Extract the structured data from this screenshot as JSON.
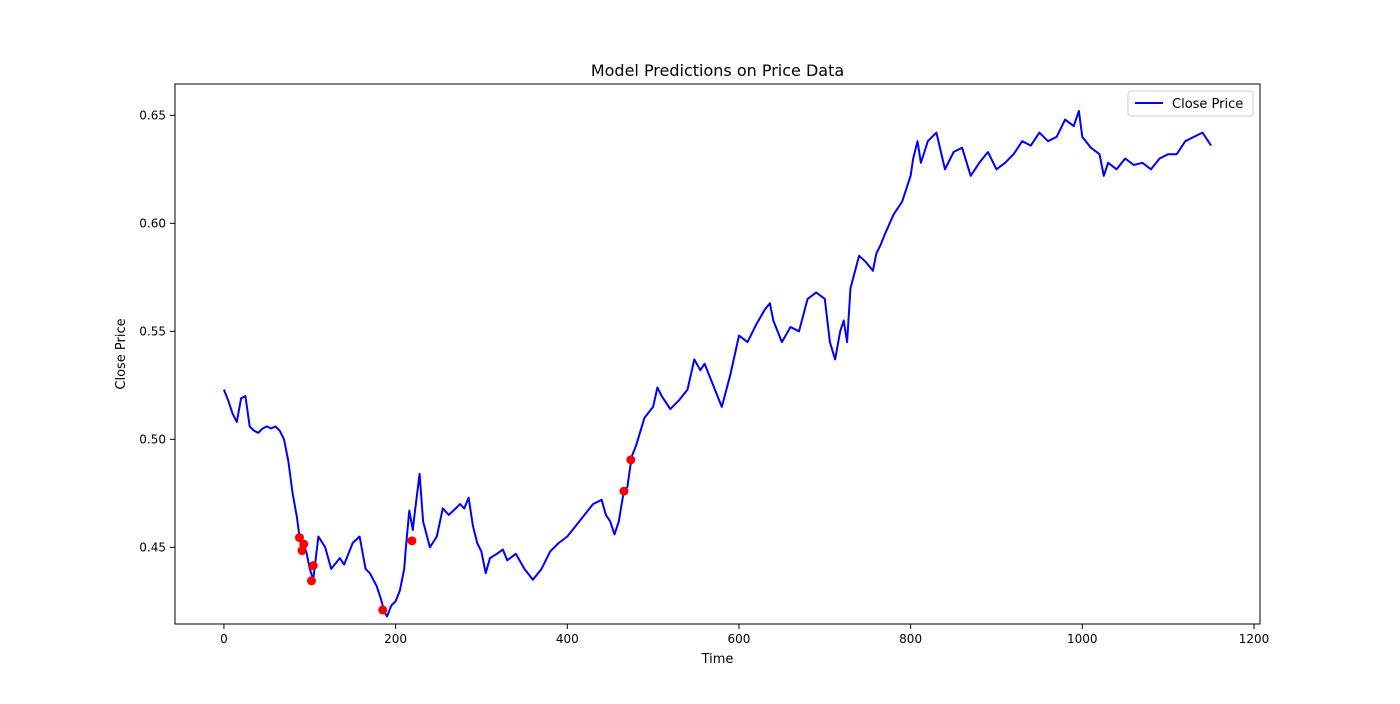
{
  "chart_data": {
    "type": "line",
    "title": "Model Predictions on Price Data",
    "xlabel": "Time",
    "ylabel": "Close Price",
    "xlim": [
      -57,
      1207
    ],
    "ylim": [
      0.4145,
      0.6645
    ],
    "xticks": [
      0,
      200,
      400,
      600,
      800,
      1000,
      1200
    ],
    "yticks": [
      0.45,
      0.5,
      0.55,
      0.6,
      0.65
    ],
    "grid": false,
    "legend": {
      "position": "top-right",
      "entries": [
        "Close Price"
      ]
    },
    "colors": {
      "series": "#0000ff",
      "predictions": "#ff0000"
    },
    "series": [
      {
        "name": "Close Price",
        "x": [
          0,
          5,
          10,
          15,
          20,
          25,
          30,
          35,
          40,
          45,
          50,
          55,
          60,
          65,
          70,
          75,
          80,
          85,
          88,
          92,
          96,
          100,
          104,
          110,
          118,
          125,
          135,
          140,
          150,
          158,
          165,
          170,
          178,
          183,
          187,
          190,
          195,
          200,
          205,
          210,
          212,
          216,
          220,
          222,
          228,
          232,
          240,
          248,
          255,
          262,
          270,
          275,
          280,
          285,
          290,
          295,
          300,
          305,
          310,
          318,
          325,
          330,
          340,
          350,
          360,
          370,
          380,
          390,
          400,
          410,
          420,
          430,
          440,
          445,
          450,
          455,
          460,
          465,
          470,
          475,
          480,
          490,
          500,
          505,
          510,
          520,
          530,
          540,
          548,
          555,
          560,
          565,
          570,
          575,
          580,
          590,
          600,
          610,
          620,
          630,
          636,
          640,
          650,
          660,
          670,
          680,
          690,
          700,
          706,
          712,
          718,
          722,
          726,
          730,
          740,
          748,
          756,
          760,
          765,
          770,
          780,
          790,
          800,
          803,
          808,
          812,
          816,
          820,
          830,
          840,
          850,
          860,
          870,
          880,
          890,
          900,
          910,
          920,
          930,
          940,
          950,
          960,
          970,
          980,
          990,
          996,
          1000,
          1010,
          1020,
          1025,
          1030,
          1040,
          1050,
          1060,
          1070,
          1080,
          1090,
          1100,
          1110,
          1120,
          1130,
          1140,
          1150
        ],
        "values": [
          0.523,
          0.518,
          0.512,
          0.508,
          0.519,
          0.52,
          0.506,
          0.504,
          0.503,
          0.505,
          0.506,
          0.505,
          0.506,
          0.504,
          0.5,
          0.49,
          0.475,
          0.464,
          0.455,
          0.452,
          0.448,
          0.44,
          0.435,
          0.455,
          0.45,
          0.44,
          0.445,
          0.442,
          0.452,
          0.455,
          0.44,
          0.438,
          0.432,
          0.426,
          0.42,
          0.418,
          0.423,
          0.425,
          0.43,
          0.44,
          0.45,
          0.467,
          0.458,
          0.465,
          0.484,
          0.462,
          0.45,
          0.455,
          0.468,
          0.465,
          0.468,
          0.47,
          0.468,
          0.473,
          0.46,
          0.452,
          0.448,
          0.438,
          0.445,
          0.447,
          0.449,
          0.444,
          0.447,
          0.44,
          0.435,
          0.44,
          0.448,
          0.452,
          0.455,
          0.46,
          0.465,
          0.47,
          0.472,
          0.465,
          0.462,
          0.456,
          0.462,
          0.474,
          0.478,
          0.492,
          0.497,
          0.51,
          0.515,
          0.524,
          0.52,
          0.514,
          0.518,
          0.523,
          0.537,
          0.532,
          0.535,
          0.53,
          0.525,
          0.52,
          0.515,
          0.53,
          0.548,
          0.545,
          0.553,
          0.56,
          0.563,
          0.555,
          0.545,
          0.552,
          0.55,
          0.565,
          0.568,
          0.565,
          0.545,
          0.537,
          0.55,
          0.555,
          0.545,
          0.57,
          0.585,
          0.582,
          0.578,
          0.586,
          0.59,
          0.595,
          0.604,
          0.61,
          0.622,
          0.63,
          0.638,
          0.628,
          0.633,
          0.638,
          0.642,
          0.625,
          0.633,
          0.635,
          0.622,
          0.628,
          0.633,
          0.625,
          0.628,
          0.632,
          0.638,
          0.636,
          0.642,
          0.638,
          0.64,
          0.648,
          0.645,
          0.652,
          0.64,
          0.635,
          0.632,
          0.622,
          0.628,
          0.625,
          0.63,
          0.627,
          0.628,
          0.625,
          0.63,
          0.632,
          0.632,
          0.638,
          0.64,
          0.642,
          0.636
        ]
      }
    ],
    "predictions": {
      "x": [
        88,
        91,
        93,
        102,
        104,
        185,
        219,
        466,
        474
      ],
      "values": [
        0.4545,
        0.4485,
        0.4515,
        0.4345,
        0.4415,
        0.421,
        0.453,
        0.476,
        0.4905
      ]
    }
  }
}
